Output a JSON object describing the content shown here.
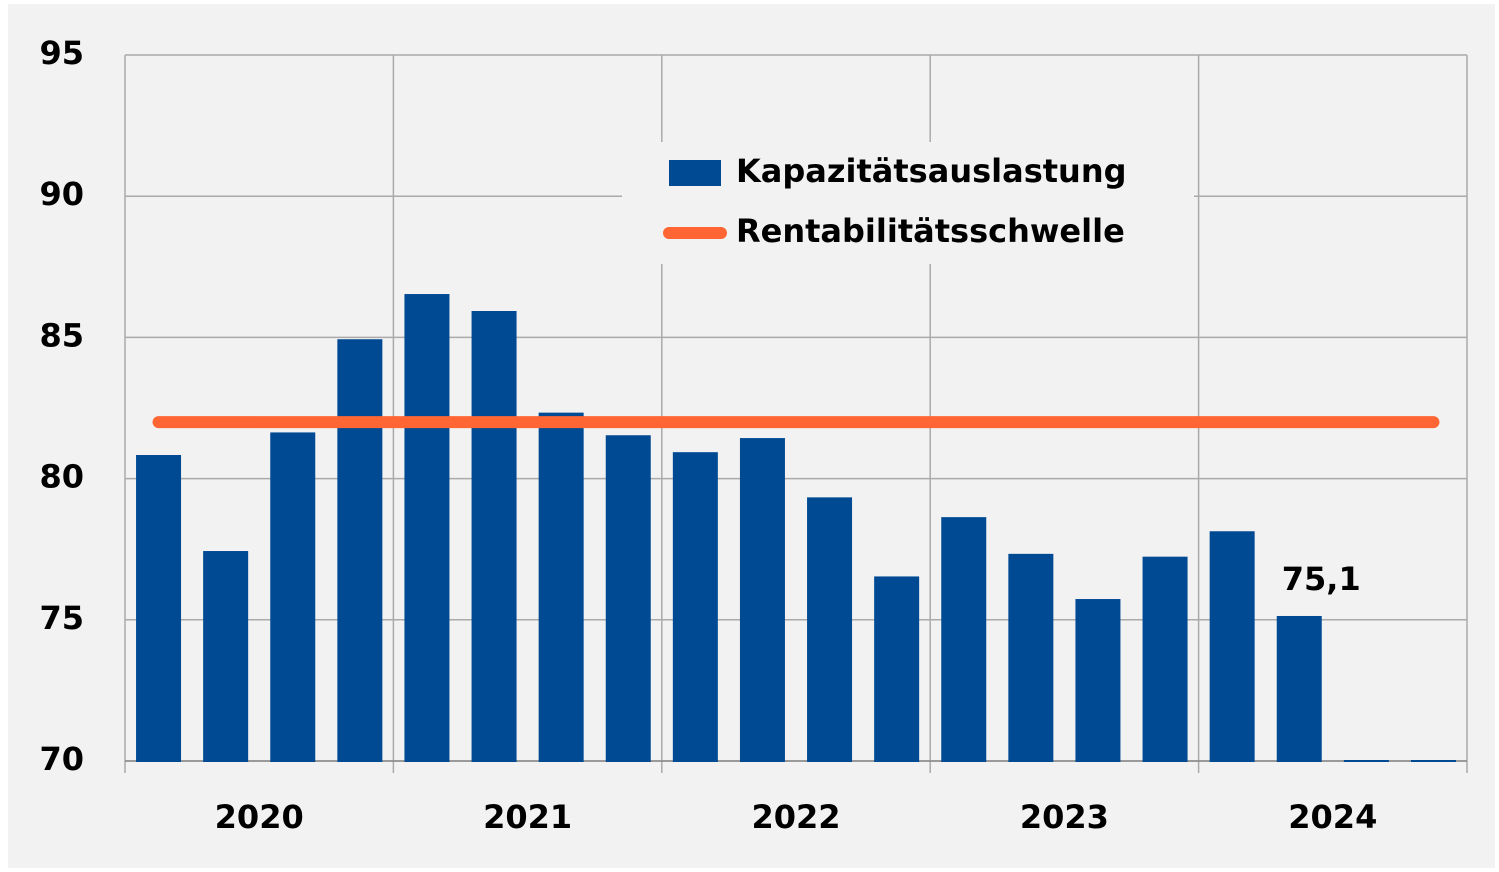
{
  "chart_data": {
    "type": "bar",
    "categories": [
      null,
      null,
      null,
      null,
      null,
      null,
      null,
      null,
      null,
      null,
      null,
      null,
      null,
      null,
      null,
      null,
      null,
      null,
      null,
      null
    ],
    "groups": [
      "2020",
      "2021",
      "2022",
      "2023",
      "2024"
    ],
    "series": [
      {
        "name": "Kapazitätsauslastung",
        "type": "bar",
        "color": "#004a94",
        "values": [
          80.8,
          77.4,
          81.6,
          84.9,
          86.5,
          85.9,
          82.3,
          81.5,
          80.9,
          81.4,
          79.3,
          76.5,
          78.6,
          77.3,
          75.7,
          77.2,
          78.1,
          75.1,
          70,
          70
        ],
        "value_labels": [
          null,
          null,
          null,
          null,
          null,
          null,
          null,
          null,
          null,
          null,
          null,
          null,
          null,
          null,
          null,
          null,
          null,
          "75,1",
          null,
          null
        ]
      },
      {
        "name": "Rentabilitätsschwelle",
        "type": "line",
        "color": "#ff6633",
        "values": [
          82,
          82,
          82,
          82,
          82,
          82,
          82,
          82,
          82,
          82,
          82,
          82,
          82,
          82,
          82,
          82,
          82,
          82,
          82,
          82
        ]
      }
    ],
    "ylim": [
      70,
      95
    ],
    "yticks": [
      70,
      75,
      80,
      85,
      90,
      95
    ],
    "grid": true,
    "legend": "top"
  }
}
